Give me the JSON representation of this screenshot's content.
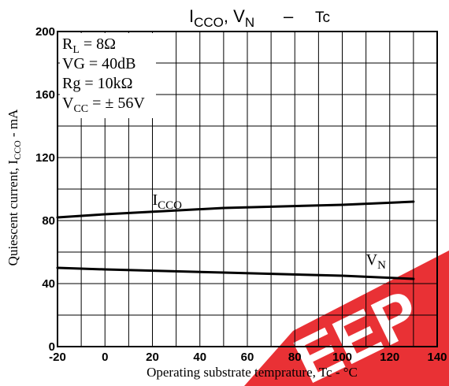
{
  "chart_data": {
    "type": "line",
    "title": {
      "prefix": "I",
      "prefix_sub": "CCO",
      "middle": ", V",
      "middle_sub": "N",
      "dash": "–",
      "tail": "Tc"
    },
    "xlabel": "Operating substrate temprature, Tc - °C",
    "ylabel": {
      "before": "Quiescent current, I",
      "sub": "CCO",
      "after": " - mA"
    },
    "xlim": [
      -20,
      140
    ],
    "ylim": [
      0,
      200
    ],
    "x_ticks": [
      "-20",
      "0",
      "20",
      "40",
      "60",
      "80",
      "100",
      "120",
      "140"
    ],
    "y_ticks": [
      "0",
      "40",
      "80",
      "120",
      "160",
      "200"
    ],
    "grid": true,
    "conditions": [
      {
        "main": "R",
        "sub": "L",
        "rest": " = 8Ω"
      },
      {
        "main": "VG = 40dB",
        "sub": "",
        "rest": ""
      },
      {
        "main": "Rg = 10kΩ",
        "sub": "",
        "rest": ""
      },
      {
        "main": "V",
        "sub": "CC",
        "rest": " = ± 56V"
      }
    ],
    "series": [
      {
        "name": "I",
        "name_sub": "CCO",
        "x": [
          -20,
          0,
          50,
          100,
          130
        ],
        "y": [
          82,
          84,
          88,
          90,
          92
        ]
      },
      {
        "name": "V",
        "name_sub": "N",
        "x": [
          -20,
          0,
          50,
          100,
          130
        ],
        "y": [
          50,
          49,
          47,
          45,
          43
        ]
      }
    ],
    "watermark": "EEP",
    "colors": {
      "axis": "#000000",
      "grid": "#000000",
      "line": "#000000",
      "watermark": "#e8262a"
    }
  }
}
